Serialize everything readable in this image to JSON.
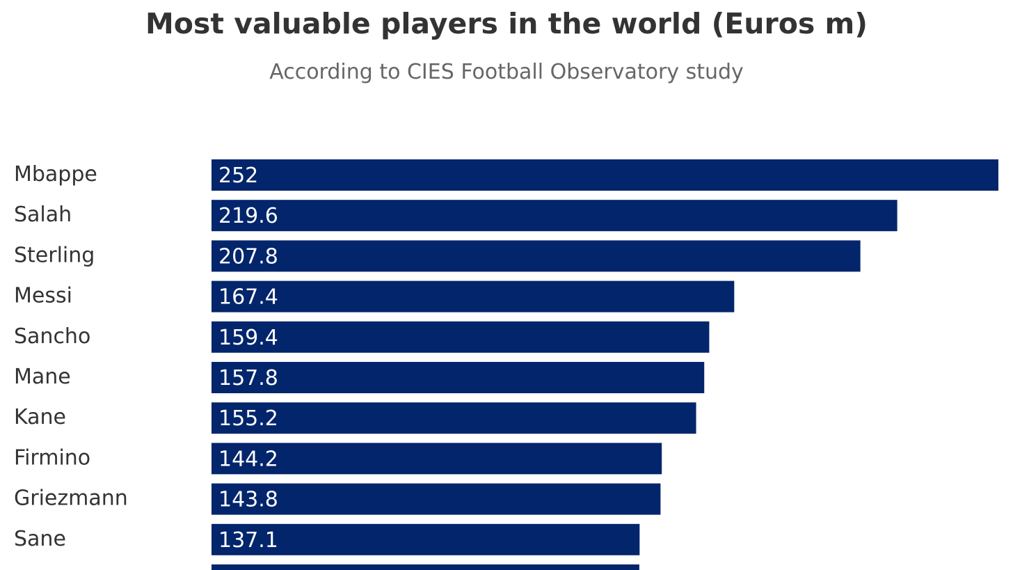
{
  "chart_data": {
    "type": "bar",
    "orientation": "horizontal",
    "title": "Most valuable players in the world (Euros m)",
    "subtitle": "According to CIES Football Observatory study",
    "categories": [
      "Mbappe",
      "Salah",
      "Sterling",
      "Messi",
      "Sancho",
      "Mane",
      "Kane",
      "Firmino",
      "Griezmann",
      "Sane",
      ""
    ],
    "value_labels": [
      "252",
      "219.6",
      "207.8",
      "167.4",
      "159.4",
      "157.8",
      "155.2",
      "144.2",
      "143.8",
      "137.1",
      ""
    ],
    "values": [
      252,
      219.6,
      207.8,
      167.4,
      159.4,
      157.8,
      155.2,
      144.2,
      143.8,
      137.1,
      137.0
    ],
    "xlim": [
      0,
      252
    ],
    "grid": false,
    "legend": "none",
    "bar_color": "#03256c",
    "label_color": "#ffffff",
    "text_color": "#333333",
    "subtitle_color": "#666666"
  }
}
